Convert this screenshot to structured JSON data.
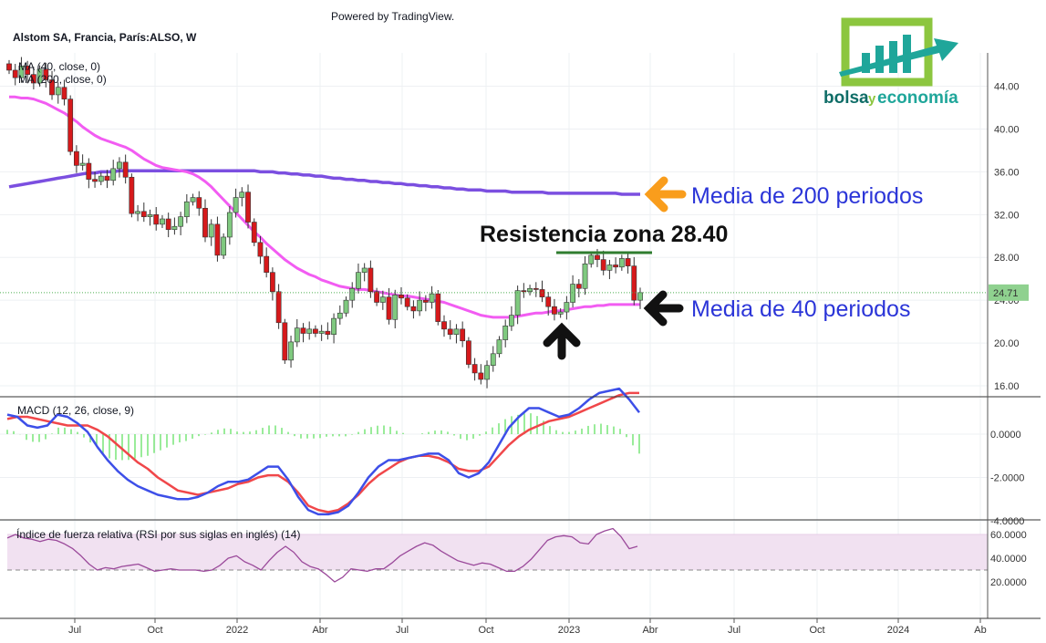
{
  "header": {
    "powered_by": "Powered by TradingView.",
    "symbol": "Alstom SA, Francia, París:ALSO, W",
    "ma40_legend": "MA (40, close, 0)",
    "ma200_legend": "MA (200, close, 0)"
  },
  "logo": {
    "word1": "bolsa",
    "word2": "y",
    "word3": "economía",
    "colors": {
      "frame": "#8cc63f",
      "bars": "#1fa69a",
      "arrow": "#1fa69a",
      "text_dark": "#0f6d67"
    }
  },
  "annotations": {
    "ma200_label": "Media de 200 periodos",
    "ma40_label": "Media de 40 periodos",
    "resistance_label": "Resistencia zona 28.40"
  },
  "panels": {
    "macd_title": "MACD (12, 26, close, 9)",
    "rsi_title": "Índice de fuerza relativa (RSI por sus siglas en inglés) (14)"
  },
  "colors": {
    "up": "#7fc97f",
    "down": "#d6191b",
    "ma40": "#f25cf2",
    "ma200": "#7b4fe0",
    "macd": "#3d4fe8",
    "signal": "#f0474a",
    "hist": "#6fe36f",
    "rsi": "#9b4a9b",
    "rsi_band": "#f1e1f1",
    "arrow_orange": "#f99d1c",
    "resistance": "#2f7d2f"
  },
  "chart_data": [
    {
      "type": "candlestick",
      "title": "Alstom SA, Francia, París:ALSO, W",
      "ylim": [
        15,
        47
      ],
      "y_ticks": [
        "16.00",
        "20.00",
        "24.00",
        "28.00",
        "32.00",
        "36.00",
        "40.00",
        "44.00"
      ],
      "x_ticks": [
        "Jul",
        "Oct",
        "2022",
        "Abr",
        "Jul",
        "Oct",
        "2023",
        "Abr",
        "Jul",
        "Oct",
        "2024",
        "Ab"
      ],
      "last_price": "24.71",
      "resistance": 28.4,
      "closes": [
        45.5,
        44.8,
        45.9,
        45.1,
        44.3,
        45.6,
        44.6,
        43.2,
        43.9,
        42.8,
        37.9,
        36.6,
        36.8,
        35.3,
        35.1,
        35.6,
        35.2,
        36.3,
        36.9,
        35.5,
        32.1,
        32.3,
        31.8,
        32.0,
        31.1,
        31.6,
        30.6,
        30.9,
        31.8,
        33.2,
        33.6,
        32.6,
        29.9,
        31.1,
        28.2,
        29.9,
        32.2,
        33.6,
        34.1,
        31.3,
        29.4,
        28.1,
        26.6,
        24.8,
        21.9,
        18.4,
        20.1,
        21.4,
        20.9,
        21.3,
        20.9,
        21.1,
        20.8,
        22.3,
        22.8,
        24.0,
        25.1,
        26.6,
        27.0,
        24.8,
        23.8,
        24.3,
        22.2,
        24.5,
        24.2,
        23.4,
        23.0,
        24.0,
        23.8,
        24.6,
        22.0,
        21.3,
        20.8,
        21.3,
        20.2,
        18.0,
        17.2,
        16.6,
        17.9,
        19.0,
        20.3,
        21.6,
        22.6,
        24.9,
        24.8,
        25.1,
        25.0,
        24.3,
        23.4,
        22.7,
        22.9,
        23.8,
        25.5,
        25.1,
        27.4,
        28.2,
        27.8,
        26.8,
        27.3,
        27.1,
        27.9,
        27.2,
        24.0,
        24.71
      ],
      "ma40": [
        43.0,
        43.0,
        42.9,
        42.9,
        42.8,
        42.6,
        42.4,
        42.1,
        41.8,
        41.5,
        41.1,
        40.7,
        40.2,
        39.8,
        39.4,
        39.1,
        38.9,
        38.7,
        38.5,
        38.3,
        38.0,
        37.6,
        37.2,
        36.9,
        36.6,
        36.4,
        36.3,
        36.2,
        36.1,
        36.0,
        35.8,
        35.5,
        35.1,
        34.6,
        34.0,
        33.4,
        32.8,
        32.2,
        31.6,
        31.0,
        30.4,
        29.9,
        29.3,
        28.8,
        28.3,
        27.8,
        27.4,
        27.0,
        26.7,
        26.4,
        26.2,
        25.9,
        25.7,
        25.5,
        25.3,
        25.2,
        25.1,
        25.0,
        25.0,
        24.9,
        24.8,
        24.7,
        24.6,
        24.5,
        24.4,
        24.4,
        24.3,
        24.2,
        24.1,
        24.0,
        23.9,
        23.8,
        23.6,
        23.4,
        23.2,
        23.0,
        22.8,
        22.6,
        22.5,
        22.4,
        22.4,
        22.4,
        22.4,
        22.5,
        22.6,
        22.7,
        22.8,
        22.8,
        22.9,
        23.0,
        23.0,
        23.1,
        23.2,
        23.3,
        23.4,
        23.4,
        23.5,
        23.5,
        23.6,
        23.6,
        23.6,
        23.6,
        23.6,
        23.6
      ],
      "ma200": [
        34.6,
        34.7,
        34.8,
        34.9,
        35.0,
        35.1,
        35.2,
        35.3,
        35.4,
        35.5,
        35.6,
        35.7,
        35.8,
        35.9,
        35.9,
        36.0,
        36.0,
        36.0,
        36.1,
        36.1,
        36.1,
        36.1,
        36.1,
        36.1,
        36.1,
        36.1,
        36.1,
        36.1,
        36.1,
        36.1,
        36.1,
        36.1,
        36.1,
        36.1,
        36.1,
        36.1,
        36.1,
        36.1,
        36.1,
        36.1,
        36.1,
        36.0,
        36.0,
        36.0,
        35.9,
        35.9,
        35.8,
        35.8,
        35.7,
        35.7,
        35.6,
        35.6,
        35.5,
        35.4,
        35.4,
        35.3,
        35.3,
        35.2,
        35.2,
        35.1,
        35.1,
        35.0,
        35.0,
        34.9,
        34.9,
        34.8,
        34.8,
        34.7,
        34.7,
        34.6,
        34.6,
        34.5,
        34.5,
        34.4,
        34.4,
        34.3,
        34.3,
        34.3,
        34.2,
        34.2,
        34.2,
        34.2,
        34.1,
        34.1,
        34.1,
        34.1,
        34.1,
        34.1,
        34.0,
        34.0,
        34.0,
        34.0,
        34.0,
        34.0,
        34.0,
        34.0,
        34.0,
        34.0,
        34.0,
        34.0,
        33.9,
        33.9,
        33.9,
        33.9
      ]
    },
    {
      "type": "line",
      "title": "MACD (12, 26, close, 9)",
      "ylim": [
        -4.3,
        3.0
      ],
      "y_ticks": [
        "0.0000",
        "-2.0000",
        "-4.0000"
      ],
      "series": [
        {
          "name": "MACD",
          "values": [
            0.9,
            0.8,
            0.4,
            0.3,
            0.4,
            0.9,
            0.8,
            0.5,
            0.1,
            -0.6,
            -1.2,
            -1.7,
            -2.1,
            -2.4,
            -2.6,
            -2.8,
            -2.9,
            -3.0,
            -3.0,
            -2.9,
            -2.7,
            -2.4,
            -2.2,
            -2.2,
            -2.1,
            -1.8,
            -1.5,
            -1.5,
            -2.1,
            -2.9,
            -3.5,
            -3.7,
            -3.7,
            -3.6,
            -3.3,
            -2.7,
            -2.0,
            -1.5,
            -1.2,
            -1.2,
            -1.1,
            -1.0,
            -0.9,
            -0.9,
            -1.2,
            -1.8,
            -2.0,
            -1.8,
            -1.3,
            -0.5,
            0.3,
            0.8,
            1.2,
            1.2,
            1.0,
            0.8,
            0.9,
            1.2,
            1.6,
            1.9,
            2.0,
            2.1,
            1.6,
            1.0
          ]
        },
        {
          "name": "Signal",
          "values": [
            0.7,
            0.8,
            0.8,
            0.7,
            0.6,
            0.5,
            0.4,
            0.4,
            0.4,
            0.2,
            -0.1,
            -0.5,
            -0.9,
            -1.3,
            -1.6,
            -2.0,
            -2.3,
            -2.6,
            -2.7,
            -2.8,
            -2.7,
            -2.6,
            -2.5,
            -2.3,
            -2.2,
            -2.0,
            -1.9,
            -1.9,
            -2.2,
            -2.7,
            -3.3,
            -3.5,
            -3.6,
            -3.5,
            -3.2,
            -2.8,
            -2.3,
            -1.9,
            -1.6,
            -1.3,
            -1.1,
            -1.0,
            -1.0,
            -1.1,
            -1.3,
            -1.6,
            -1.7,
            -1.7,
            -1.5,
            -1.0,
            -0.5,
            -0.1,
            0.2,
            0.4,
            0.6,
            0.7,
            0.8,
            1.0,
            1.2,
            1.4,
            1.6,
            1.8,
            1.9,
            1.9
          ]
        },
        {
          "name": "Histogram",
          "values": [
            0.2,
            0.1,
            -0.3,
            -0.4,
            -0.2,
            0.3,
            0.3,
            0.1,
            -0.3,
            -0.6,
            -1.1,
            -1.2,
            -1.2,
            -1.1,
            -1.0,
            -0.8,
            -0.6,
            -0.4,
            -0.3,
            -0.1,
            0.0,
            0.2,
            0.3,
            0.1,
            0.1,
            0.2,
            0.4,
            0.4,
            0.1,
            -0.2,
            -0.2,
            -0.2,
            -0.1,
            -0.1,
            -0.1,
            0.1,
            0.3,
            0.4,
            0.4,
            0.1,
            0.0,
            0.0,
            0.1,
            0.2,
            0.1,
            -0.2,
            -0.3,
            -0.1,
            0.2,
            0.5,
            0.8,
            0.9,
            1.0,
            0.8,
            0.4,
            0.1,
            0.1,
            0.2,
            0.4,
            0.5,
            0.4,
            0.3,
            -0.3,
            -0.9
          ]
        }
      ]
    },
    {
      "type": "line",
      "title": "Índice de fuerza relativa (RSI por sus siglas en inglés) (14)",
      "ylim": [
        12,
        70
      ],
      "y_ticks": [
        "60.0000",
        "40.0000",
        "20.0000"
      ],
      "band": [
        30,
        60
      ],
      "values": [
        57,
        60,
        57,
        56,
        54,
        56,
        55,
        52,
        48,
        42,
        35,
        30,
        32,
        31,
        33,
        34,
        35,
        32,
        29,
        30,
        31,
        30,
        30,
        30,
        29,
        30,
        34,
        40,
        42,
        37,
        34,
        30,
        38,
        45,
        50,
        45,
        37,
        33,
        31,
        26,
        20,
        24,
        31,
        30,
        29,
        31,
        31,
        36,
        42,
        46,
        50,
        53,
        51,
        46,
        42,
        38,
        36,
        34,
        36,
        35,
        32,
        29,
        29,
        33,
        39,
        47,
        55,
        58,
        59,
        58,
        53,
        52,
        60,
        63,
        65,
        58,
        48,
        50
      ]
    }
  ]
}
